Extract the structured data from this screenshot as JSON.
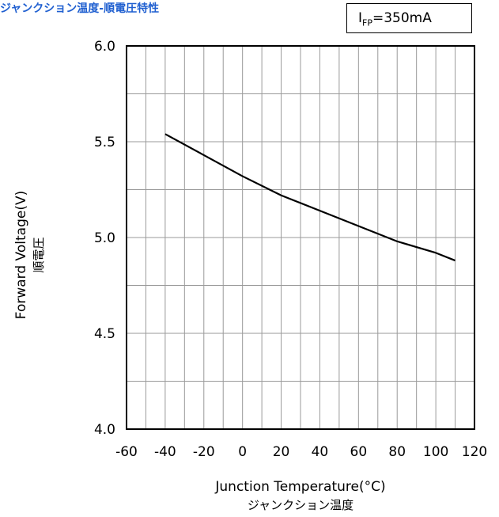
{
  "title": "ジャンクション温度-順電圧特性",
  "condition": {
    "symbol": "I",
    "subscript": "FP",
    "value": "=350mA"
  },
  "chart_data": {
    "type": "line",
    "xlabel": "Junction Temperature(°C)",
    "xlabel_jp": "ジャンクション温度",
    "ylabel": "Forward Voltage(V)",
    "ylabel_jp": "順電圧",
    "xlim": [
      -60,
      120
    ],
    "ylim": [
      4.0,
      6.0
    ],
    "x_ticks": [
      -60,
      -40,
      -20,
      0,
      20,
      40,
      60,
      80,
      100,
      120
    ],
    "x_tick_labels": [
      "-60",
      "-40",
      "-20",
      "0",
      "20",
      "40",
      "60",
      "80",
      "100",
      "120"
    ],
    "y_ticks": [
      4.0,
      4.5,
      5.0,
      5.5,
      6.0
    ],
    "y_tick_labels": [
      "4.0",
      "4.5",
      "5.0",
      "5.5",
      "6.0"
    ],
    "x_grid_step": 10,
    "y_grid_step": 0.25,
    "grid": true,
    "series": [
      {
        "color": "#000000",
        "x": [
          -40,
          -20,
          0,
          20,
          40,
          60,
          80,
          100,
          110
        ],
        "y": [
          5.54,
          5.43,
          5.32,
          5.22,
          5.14,
          5.06,
          4.98,
          4.92,
          4.88
        ]
      }
    ]
  }
}
